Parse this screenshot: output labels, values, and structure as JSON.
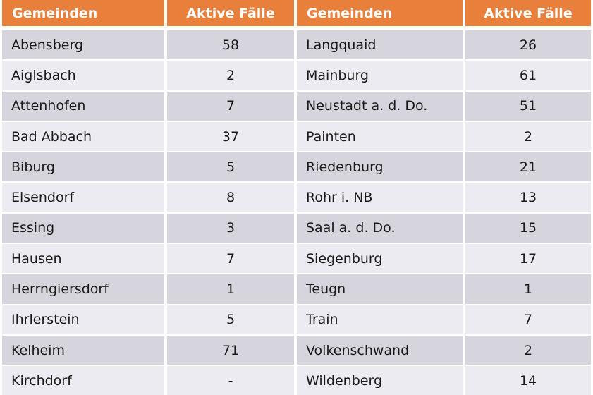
{
  "table": {
    "header": {
      "col1": "Gemeinden",
      "col2": "Aktive Fälle",
      "col3": "Gemeinden",
      "col4": "Aktive Fälle"
    },
    "rows": [
      {
        "g1": "Abensberg",
        "v1": "58",
        "g2": "Langquaid",
        "v2": "26"
      },
      {
        "g1": "Aiglsbach",
        "v1": "2",
        "g2": "Mainburg",
        "v2": "61"
      },
      {
        "g1": "Attenhofen",
        "v1": "7",
        "g2": "Neustadt a. d. Do.",
        "v2": "51"
      },
      {
        "g1": "Bad Abbach",
        "v1": "37",
        "g2": "Painten",
        "v2": "2"
      },
      {
        "g1": "Biburg",
        "v1": "5",
        "g2": "Riedenburg",
        "v2": "21"
      },
      {
        "g1": "Elsendorf",
        "v1": "8",
        "g2": "Rohr i. NB",
        "v2": "13"
      },
      {
        "g1": "Essing",
        "v1": "3",
        "g2": "Saal a. d. Do.",
        "v2": "15"
      },
      {
        "g1": "Hausen",
        "v1": "7",
        "g2": "Siegenburg",
        "v2": "17"
      },
      {
        "g1": "Herrngiersdorf",
        "v1": "1",
        "g2": "Teugn",
        "v2": "1"
      },
      {
        "g1": "Ihrlerstein",
        "v1": "5",
        "g2": "Train",
        "v2": "7"
      },
      {
        "g1": "Kelheim",
        "v1": "71",
        "g2": "Volkenschwand",
        "v2": "2"
      },
      {
        "g1": "Kirchdorf",
        "v1": "-",
        "g2": "Wildenberg",
        "v2": "14"
      }
    ],
    "colors": {
      "header_bg": "#E8803C",
      "header_text": "#FFFFFF",
      "row_dark": "#D6D5DD",
      "row_light": "#ECEBF1",
      "gutter": "#FFFFFF",
      "body_text": "#1A1A1A"
    }
  },
  "chart_data": {
    "type": "table",
    "columns": [
      "Gemeinden",
      "Aktive Fälle",
      "Gemeinden",
      "Aktive Fälle"
    ],
    "municipalities": [
      {
        "name": "Abensberg",
        "active_cases": 58
      },
      {
        "name": "Aiglsbach",
        "active_cases": 2
      },
      {
        "name": "Attenhofen",
        "active_cases": 7
      },
      {
        "name": "Bad Abbach",
        "active_cases": 37
      },
      {
        "name": "Biburg",
        "active_cases": 5
      },
      {
        "name": "Elsendorf",
        "active_cases": 8
      },
      {
        "name": "Essing",
        "active_cases": 3
      },
      {
        "name": "Hausen",
        "active_cases": 7
      },
      {
        "name": "Herrngiersdorf",
        "active_cases": 1
      },
      {
        "name": "Ihrlerstein",
        "active_cases": 5
      },
      {
        "name": "Kelheim",
        "active_cases": 71
      },
      {
        "name": "Kirchdorf",
        "active_cases": "-"
      },
      {
        "name": "Langquaid",
        "active_cases": 26
      },
      {
        "name": "Mainburg",
        "active_cases": 61
      },
      {
        "name": "Neustadt a. d. Do.",
        "active_cases": 51
      },
      {
        "name": "Painten",
        "active_cases": 2
      },
      {
        "name": "Riedenburg",
        "active_cases": 21
      },
      {
        "name": "Rohr i. NB",
        "active_cases": 13
      },
      {
        "name": "Saal a. d. Do.",
        "active_cases": 15
      },
      {
        "name": "Siegenburg",
        "active_cases": 17
      },
      {
        "name": "Teugn",
        "active_cases": 1
      },
      {
        "name": "Train",
        "active_cases": 7
      },
      {
        "name": "Volkenschwand",
        "active_cases": 2
      },
      {
        "name": "Wildenberg",
        "active_cases": 14
      }
    ]
  }
}
